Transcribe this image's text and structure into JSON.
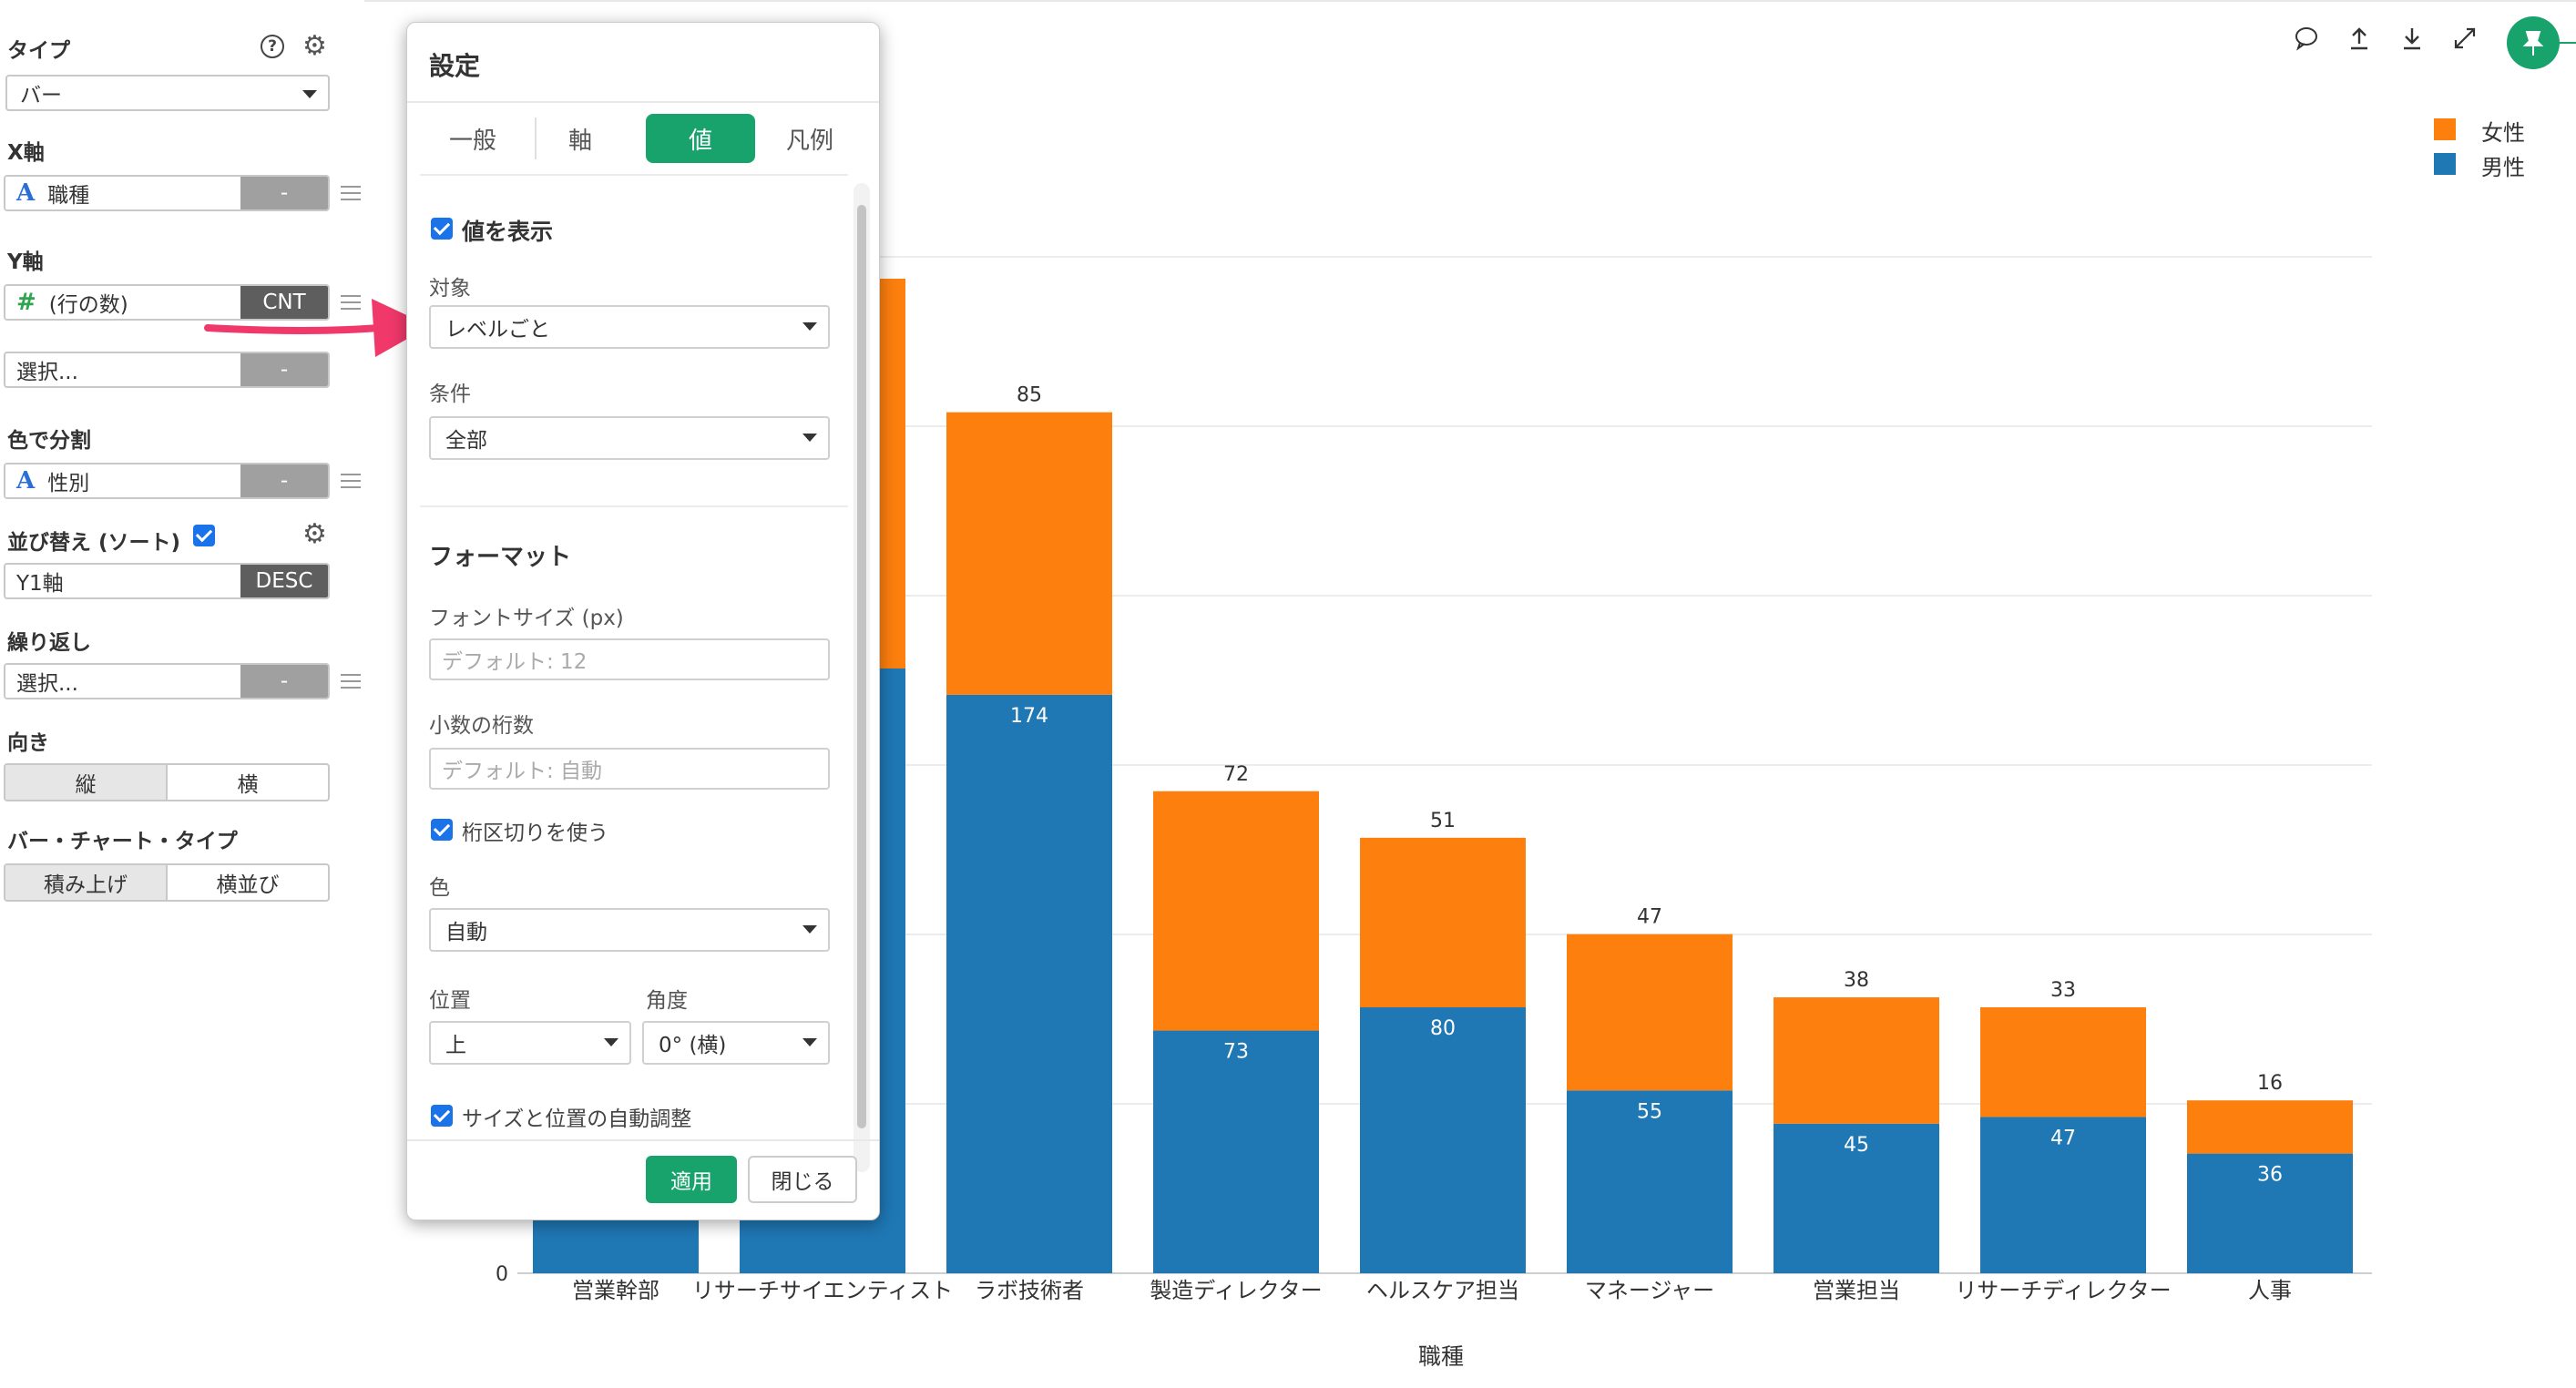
{
  "left_panel": {
    "type_label": "タイプ",
    "type_value": "バー",
    "x_axis_label": "X軸",
    "x_field": "職種",
    "x_btn": "-",
    "y_axis_label": "Y軸",
    "y_field": "(行の数)",
    "y_btn": "CNT",
    "y2_field": "選択...",
    "y2_btn": "-",
    "color_label": "色で分割",
    "color_field": "性別",
    "color_btn": "-",
    "sort_label": "並び替え (ソート)",
    "sort_field": "Y1軸",
    "sort_btn": "DESC",
    "repeat_label": "繰り返し",
    "repeat_field": "選択...",
    "repeat_btn": "-",
    "orient_label": "向き",
    "orient_options": [
      "縦",
      "横"
    ],
    "bartype_label": "バー・チャート・タイプ",
    "bartype_options": [
      "積み上げ",
      "横並び"
    ],
    "field_icon_text": "A",
    "field_icon_number": "#"
  },
  "modal": {
    "title": "設定",
    "tabs": [
      "一般",
      "軸",
      "値",
      "凡例"
    ],
    "active_tab": "値",
    "show_values_label": "値を表示",
    "target_label": "対象",
    "target_value": "レベルごと",
    "condition_label": "条件",
    "condition_value": "全部",
    "format_heading": "フォーマット",
    "font_size_label": "フォントサイズ (px)",
    "font_size_placeholder": "デフォルト: 12",
    "decimals_label": "小数の桁数",
    "decimals_placeholder": "デフォルト: 自動",
    "thousands_label": "桁区切りを使う",
    "color_label": "色",
    "color_value": "自動",
    "position_label": "位置",
    "position_value": "上",
    "angle_label": "角度",
    "angle_value": "0° (横)",
    "auto_adjust_label": "サイズと位置の自動調整",
    "apply_button": "適用",
    "close_button": "閉じる"
  },
  "colors": {
    "female": "#fd7f0e",
    "male": "#1f77b4",
    "accent": "#17a36b",
    "arrow": "#f0386b"
  },
  "chart_data": {
    "type": "bar",
    "stacked": true,
    "xlabel": "職種",
    "categories": [
      "営業幹部",
      "リサーチサイエンティスト",
      "ラボ技術者",
      "製造ディレクター",
      "ヘルスケア担当",
      "マネージャー",
      "営業担当",
      "リサーチディレクター",
      "人事"
    ],
    "series": [
      {
        "name": "男性",
        "values": [
          null,
          null,
          174,
          73,
          80,
          55,
          45,
          47,
          36
        ]
      },
      {
        "name": "女性",
        "values": [
          null,
          null,
          85,
          72,
          51,
          47,
          38,
          33,
          16
        ]
      }
    ],
    "ytick_visible": [
      "0"
    ],
    "legend": [
      "女性",
      "男性"
    ],
    "legend_position": "top-right"
  }
}
